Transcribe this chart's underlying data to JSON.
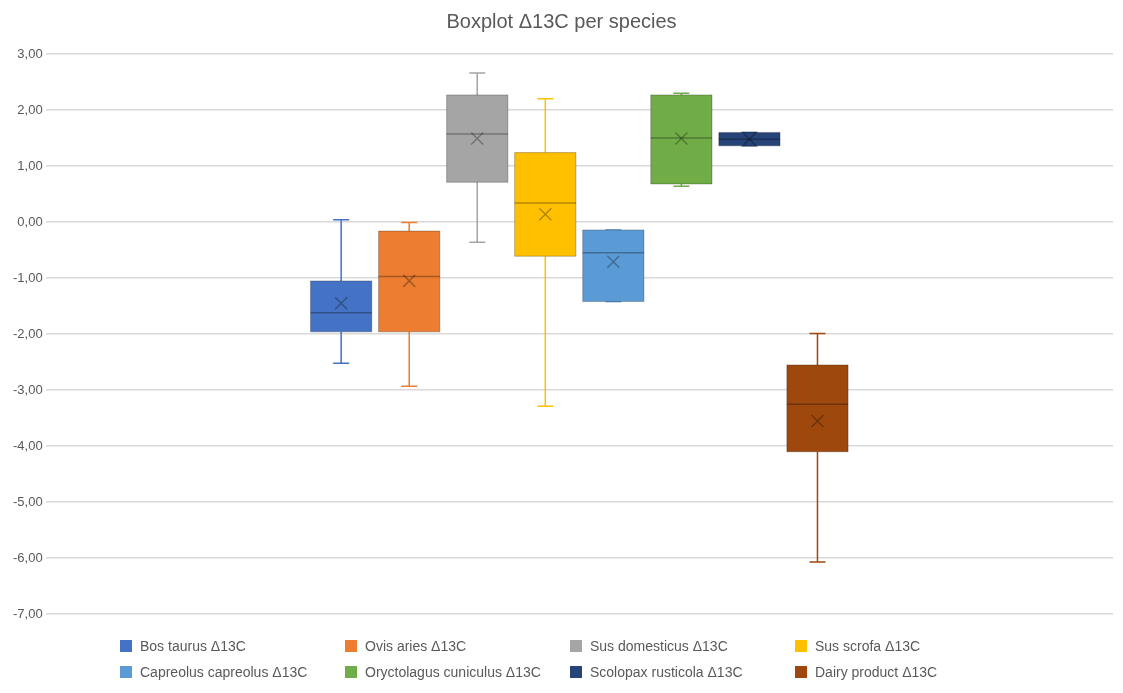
{
  "chart_data": {
    "type": "box",
    "title": "Boxplot Δ13C per species",
    "categories": [
      null
    ],
    "series": [
      {
        "name": "Bos taurus Δ13C",
        "color": "#4472c4",
        "boxes": [
          {
            "low": -2.52,
            "q1": -1.96,
            "median": -1.62,
            "q3": -1.05,
            "high": 0.04,
            "mean": -1.45
          }
        ]
      },
      {
        "name": "Ovis aries Δ13C",
        "color": "#ed7d31",
        "boxes": [
          {
            "low": -2.93,
            "q1": -1.96,
            "median": -0.97,
            "q3": -0.16,
            "high": -0.01,
            "mean": -1.05
          }
        ]
      },
      {
        "name": "Sus domesticus Δ13C",
        "color": "#a5a5a5",
        "boxes": [
          {
            "low": -0.36,
            "q1": 0.71,
            "median": 1.57,
            "q3": 2.27,
            "high": 2.66,
            "mean": 1.49
          }
        ]
      },
      {
        "name": "Sus scrofa Δ13C",
        "color": "#ffc000",
        "boxes": [
          {
            "low": -3.29,
            "q1": -0.61,
            "median": 0.34,
            "q3": 1.24,
            "high": 2.2,
            "mean": 0.14
          }
        ]
      },
      {
        "name": "Capreolus capreolus Δ13C",
        "color": "#5b9bd5",
        "boxes": [
          {
            "low": -1.42,
            "q1": -1.42,
            "median": -0.55,
            "q3": -0.14,
            "high": -0.14,
            "mean": -0.71
          }
        ]
      },
      {
        "name": "Oryctolagus cuniculus Δ13C",
        "color": "#70ad47",
        "boxes": [
          {
            "low": 0.64,
            "q1": 0.68,
            "median": 1.5,
            "q3": 2.27,
            "high": 2.3,
            "mean": 1.49
          }
        ]
      },
      {
        "name": "Scolopax rusticola Δ13C",
        "color": "#264478",
        "boxes": [
          {
            "low": 1.36,
            "q1": 1.36,
            "median": 1.48,
            "q3": 1.6,
            "high": 1.6,
            "mean": 1.48
          }
        ]
      },
      {
        "name": "Dairy product Δ13C",
        "color": "#9e480e",
        "boxes": [
          {
            "low": -6.07,
            "q1": -4.1,
            "median": -3.25,
            "q3": -2.55,
            "high": -1.99,
            "mean": -3.55
          }
        ]
      }
    ],
    "ylim": [
      -7,
      3
    ],
    "yticks": [
      {
        "value": -7,
        "label": "-7,00"
      },
      {
        "value": -6,
        "label": "-6,00"
      },
      {
        "value": -5,
        "label": "-5,00"
      },
      {
        "value": -4,
        "label": "-4,00"
      },
      {
        "value": -3,
        "label": "-3,00"
      },
      {
        "value": -2,
        "label": "-2,00"
      },
      {
        "value": -1,
        "label": "-1,00"
      },
      {
        "value": 0,
        "label": "0,00"
      },
      {
        "value": 1,
        "label": "1,00"
      },
      {
        "value": 2,
        "label": "2,00"
      },
      {
        "value": 3,
        "label": "3,00"
      }
    ],
    "grid": "y",
    "legend": "bottom",
    "tick_labels": "y"
  }
}
